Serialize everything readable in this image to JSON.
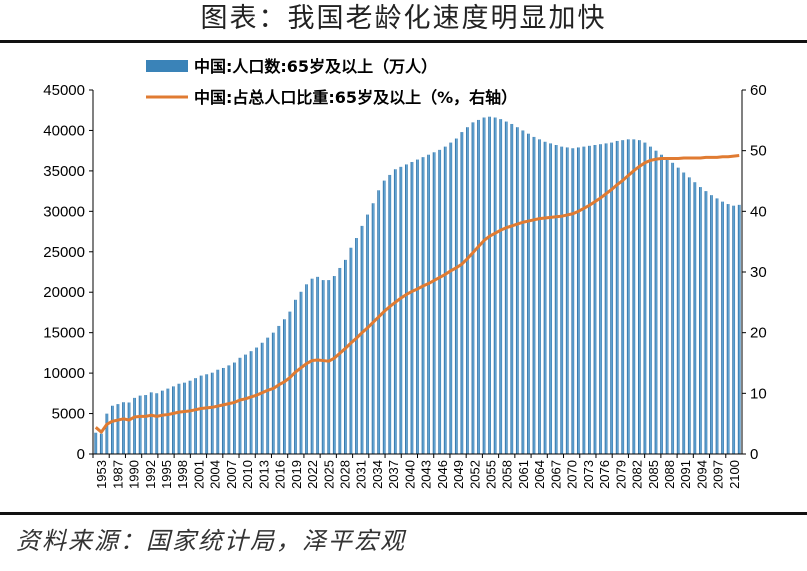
{
  "title": "图表：我国老龄化速度明显加快",
  "source": "资料来源：国家统计局，泽平宏观",
  "chart_data": {
    "type": "bar+line",
    "series": [
      {
        "name": "中国:人口数:65岁及以上（万人）",
        "kind": "bar",
        "axis": "left",
        "color": "#3a83b8"
      },
      {
        "name": "中国:占总人口比重:65岁及以上（%，右轴）",
        "kind": "line",
        "axis": "right",
        "color": "#e07b32"
      }
    ],
    "x_ticks": [
      "1953",
      "1987",
      "1990",
      "1992",
      "1995",
      "1998",
      "2001",
      "2004",
      "2007",
      "2010",
      "2013",
      "2016",
      "2019",
      "2022",
      "2025",
      "2028",
      "2031",
      "2034",
      "2037",
      "2040",
      "2043",
      "2046",
      "2049",
      "2052",
      "2055",
      "2058",
      "2061",
      "2064",
      "2067",
      "2070",
      "2073",
      "2076",
      "2079",
      "2082",
      "2085",
      "2088",
      "2091",
      "2094",
      "2097",
      "2100"
    ],
    "y_left": {
      "min": 0,
      "max": 45000,
      "ticks": [
        0,
        5000,
        10000,
        15000,
        20000,
        25000,
        30000,
        35000,
        40000,
        45000
      ]
    },
    "y_right": {
      "min": 0,
      "max": 60,
      "ticks": [
        0,
        10,
        20,
        30,
        40,
        50,
        60
      ]
    },
    "x": [
      "1953",
      "1964",
      "1982",
      "1987",
      "1988",
      "1989",
      "1990",
      "1991",
      "1992",
      "1993",
      "1994",
      "1995",
      "1996",
      "1997",
      "1998",
      "1999",
      "2000",
      "2001",
      "2002",
      "2003",
      "2004",
      "2005",
      "2006",
      "2007",
      "2008",
      "2009",
      "2010",
      "2011",
      "2012",
      "2013",
      "2014",
      "2015",
      "2016",
      "2017",
      "2018",
      "2019",
      "2020",
      "2021",
      "2022",
      "2023",
      "2024",
      "2025",
      "2026",
      "2027",
      "2028",
      "2029",
      "2030",
      "2031",
      "2032",
      "2033",
      "2034",
      "2035",
      "2036",
      "2037",
      "2038",
      "2039",
      "2040",
      "2041",
      "2042",
      "2043",
      "2044",
      "2045",
      "2046",
      "2047",
      "2048",
      "2049",
      "2050",
      "2051",
      "2052",
      "2053",
      "2054",
      "2055",
      "2056",
      "2057",
      "2058",
      "2059",
      "2060",
      "2061",
      "2062",
      "2063",
      "2064",
      "2065",
      "2066",
      "2067",
      "2068",
      "2069",
      "2070",
      "2071",
      "2072",
      "2073",
      "2074",
      "2075",
      "2076",
      "2077",
      "2078",
      "2079",
      "2080",
      "2081",
      "2082",
      "2083",
      "2084",
      "2085",
      "2086",
      "2087",
      "2088",
      "2089",
      "2090",
      "2091",
      "2092",
      "2093",
      "2094",
      "2095",
      "2096",
      "2097",
      "2098",
      "2099",
      "2100"
    ],
    "bar_values": [
      2632,
      2512,
      4991,
      5968,
      6169,
      6400,
      6368,
      6938,
      7218,
      7289,
      7622,
      7510,
      7833,
      8085,
      8359,
      8687,
      8821,
      9062,
      9377,
      9692,
      9857,
      10055,
      10419,
      10636,
      10956,
      11307,
      11894,
      12288,
      12714,
      13161,
      13755,
      14386,
      15003,
      15831,
      16658,
      17603,
      19064,
      20056,
      20978,
      21676,
      21900,
      21500,
      21500,
      22000,
      23000,
      24000,
      25500,
      26700,
      28200,
      29600,
      31000,
      32600,
      33800,
      34500,
      35200,
      35500,
      35800,
      36100,
      36400,
      36700,
      37000,
      37300,
      37600,
      38000,
      38500,
      39000,
      39800,
      40400,
      41000,
      41300,
      41600,
      41700,
      41600,
      41400,
      41100,
      40800,
      40400,
      40000,
      39600,
      39200,
      38900,
      38600,
      38400,
      38200,
      38000,
      37900,
      37800,
      37900,
      38000,
      38100,
      38200,
      38300,
      38400,
      38500,
      38700,
      38800,
      38900,
      38900,
      38800,
      38500,
      38000,
      37500,
      37000,
      36500,
      36000,
      35400,
      34800,
      34200,
      33600,
      33000,
      32500,
      32000,
      31600,
      31200,
      30900,
      30700,
      30800
    ],
    "line_values": [
      4.4,
      3.6,
      4.9,
      5.4,
      5.6,
      5.8,
      5.6,
      6.1,
      6.2,
      6.2,
      6.4,
      6.2,
      6.4,
      6.5,
      6.7,
      6.9,
      7.0,
      7.1,
      7.3,
      7.5,
      7.6,
      7.7,
      7.9,
      8.1,
      8.3,
      8.5,
      8.9,
      9.1,
      9.4,
      9.7,
      10.1,
      10.5,
      10.8,
      11.4,
      11.9,
      12.6,
      13.5,
      14.2,
      14.9,
      15.4,
      15.5,
      15.4,
      15.3,
      15.8,
      16.6,
      17.4,
      18.3,
      19.1,
      20.0,
      20.8,
      21.7,
      22.6,
      23.5,
      24.3,
      25.0,
      25.7,
      26.3,
      26.8,
      27.2,
      27.7,
      28.1,
      28.6,
      29.1,
      29.6,
      30.2,
      30.7,
      31.3,
      32.2,
      33.2,
      34.2,
      35.2,
      35.9,
      36.4,
      36.9,
      37.3,
      37.6,
      37.9,
      38.2,
      38.4,
      38.6,
      38.8,
      38.9,
      39.0,
      39.1,
      39.2,
      39.4,
      39.6,
      40.0,
      40.5,
      41.0,
      41.6,
      42.2,
      42.9,
      43.6,
      44.4,
      45.1,
      45.9,
      46.7,
      47.4,
      48.0,
      48.4,
      48.6,
      48.7,
      48.7,
      48.7,
      48.7,
      48.8,
      48.8,
      48.8,
      48.8,
      48.9,
      48.9,
      48.9,
      49.0,
      49.0,
      49.1,
      49.2
    ],
    "legend_position": "top-left"
  }
}
